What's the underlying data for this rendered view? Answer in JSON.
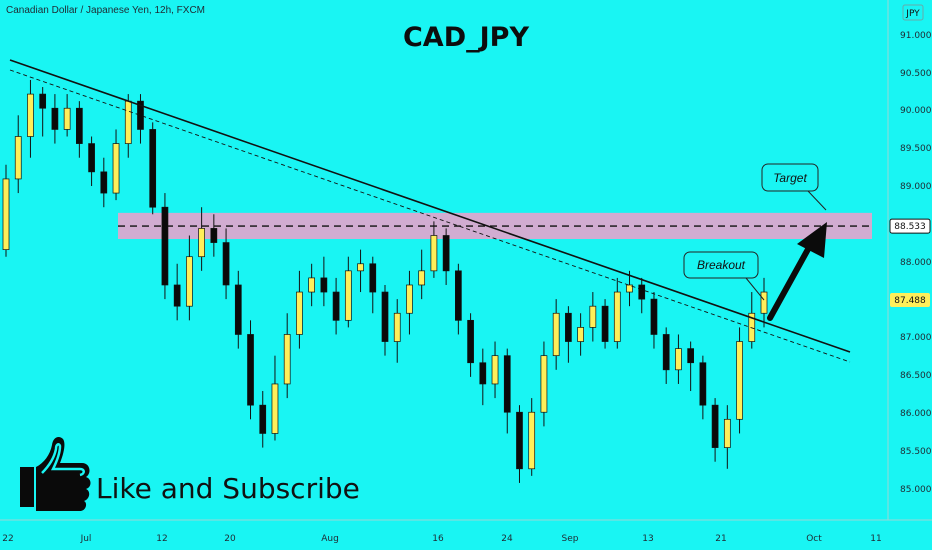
{
  "header": {
    "symbol_line": "Canadian Dollar / Japanese Yen, 12h, FXCM",
    "currency_badge": "JPY"
  },
  "chart_data": {
    "type": "candlestick",
    "title": "CAD_JPY",
    "y_ticks": [
      "91.000",
      "90.500",
      "90.000",
      "89.500",
      "89.000",
      "88.000",
      "87.000",
      "86.500",
      "86.000",
      "85.500",
      "85.000"
    ],
    "x_ticks": [
      "22",
      "Jul",
      "12",
      "20",
      "Aug",
      "16",
      "24",
      "Sep",
      "13",
      "21",
      "Oct",
      "11"
    ],
    "ylim": [
      84.8,
      91.25
    ],
    "current_price": "87.488",
    "target_price": "88.533",
    "resistance_zone": [
      88.35,
      88.72
    ],
    "annotations": {
      "breakout": "Breakout",
      "target": "Target"
    },
    "colors": {
      "bull": "#ffef5a",
      "bear": "#0a0a0a",
      "zone": "#dba8cf",
      "background": "#19f5f3"
    },
    "trendline": {
      "from": [
        "Jun 20",
        90.75
      ],
      "to": [
        "Oct 2",
        86.85
      ]
    },
    "candles_note": "approximate OHLC sequence read from the chart",
    "candles": [
      [
        88.2,
        89.2,
        89.4,
        88.1
      ],
      [
        89.2,
        89.8,
        90.1,
        89.0
      ],
      [
        89.8,
        90.4,
        90.6,
        89.5
      ],
      [
        90.4,
        90.2,
        90.5,
        89.8
      ],
      [
        90.2,
        89.9,
        90.4,
        89.7
      ],
      [
        89.9,
        90.2,
        90.4,
        89.8
      ],
      [
        90.2,
        89.7,
        90.3,
        89.5
      ],
      [
        89.7,
        89.3,
        89.8,
        89.1
      ],
      [
        89.3,
        89.0,
        89.5,
        88.8
      ],
      [
        89.0,
        89.7,
        89.9,
        88.9
      ],
      [
        89.7,
        90.3,
        90.4,
        89.5
      ],
      [
        90.3,
        89.9,
        90.4,
        89.7
      ],
      [
        89.9,
        88.8,
        90.0,
        88.7
      ],
      [
        88.8,
        87.7,
        89.0,
        87.5
      ],
      [
        87.7,
        87.4,
        88.0,
        87.2
      ],
      [
        87.4,
        88.1,
        88.4,
        87.2
      ],
      [
        88.1,
        88.5,
        88.8,
        87.9
      ],
      [
        88.5,
        88.3,
        88.7,
        88.1
      ],
      [
        88.3,
        87.7,
        88.5,
        87.5
      ],
      [
        87.7,
        87.0,
        87.9,
        86.8
      ],
      [
        87.0,
        86.0,
        87.2,
        85.8
      ],
      [
        86.0,
        85.6,
        86.2,
        85.4
      ],
      [
        85.6,
        86.3,
        86.7,
        85.5
      ],
      [
        86.3,
        87.0,
        87.3,
        86.1
      ],
      [
        87.0,
        87.6,
        87.9,
        86.8
      ],
      [
        87.6,
        87.8,
        88.0,
        87.4
      ],
      [
        87.8,
        87.6,
        88.1,
        87.4
      ],
      [
        87.6,
        87.2,
        87.8,
        87.0
      ],
      [
        87.2,
        87.9,
        88.1,
        87.1
      ],
      [
        87.9,
        88.0,
        88.2,
        87.6
      ],
      [
        88.0,
        87.6,
        88.1,
        87.3
      ],
      [
        87.6,
        86.9,
        87.7,
        86.7
      ],
      [
        86.9,
        87.3,
        87.5,
        86.6
      ],
      [
        87.3,
        87.7,
        87.9,
        87.0
      ],
      [
        87.7,
        87.9,
        88.2,
        87.5
      ],
      [
        87.9,
        88.4,
        88.6,
        87.8
      ],
      [
        88.4,
        87.9,
        88.5,
        87.7
      ],
      [
        87.9,
        87.2,
        88.0,
        87.0
      ],
      [
        87.2,
        86.6,
        87.3,
        86.4
      ],
      [
        86.6,
        86.3,
        86.8,
        86.0
      ],
      [
        86.3,
        86.7,
        86.9,
        86.1
      ],
      [
        86.7,
        85.9,
        86.8,
        85.6
      ],
      [
        85.9,
        85.1,
        86.0,
        84.9
      ],
      [
        85.1,
        85.9,
        86.1,
        85.0
      ],
      [
        85.9,
        86.7,
        86.9,
        85.7
      ],
      [
        86.7,
        87.3,
        87.5,
        86.5
      ],
      [
        87.3,
        86.9,
        87.4,
        86.6
      ],
      [
        86.9,
        87.1,
        87.3,
        86.7
      ],
      [
        87.1,
        87.4,
        87.6,
        86.9
      ],
      [
        87.4,
        86.9,
        87.5,
        86.8
      ],
      [
        86.9,
        87.6,
        87.8,
        86.8
      ],
      [
        87.6,
        87.7,
        87.9,
        87.4
      ],
      [
        87.7,
        87.5,
        87.8,
        87.3
      ],
      [
        87.5,
        87.0,
        87.6,
        86.8
      ],
      [
        87.0,
        86.5,
        87.1,
        86.3
      ],
      [
        86.5,
        86.8,
        87.0,
        86.3
      ],
      [
        86.8,
        86.6,
        86.9,
        86.2
      ],
      [
        86.6,
        86.0,
        86.7,
        85.8
      ],
      [
        86.0,
        85.4,
        86.1,
        85.2
      ],
      [
        85.4,
        85.8,
        86.0,
        85.1
      ],
      [
        85.8,
        86.9,
        87.1,
        85.6
      ],
      [
        86.9,
        87.3,
        87.6,
        86.8
      ],
      [
        87.3,
        87.6,
        87.8,
        87.1
      ]
    ]
  },
  "cta": {
    "text": "Like and Subscribe"
  }
}
